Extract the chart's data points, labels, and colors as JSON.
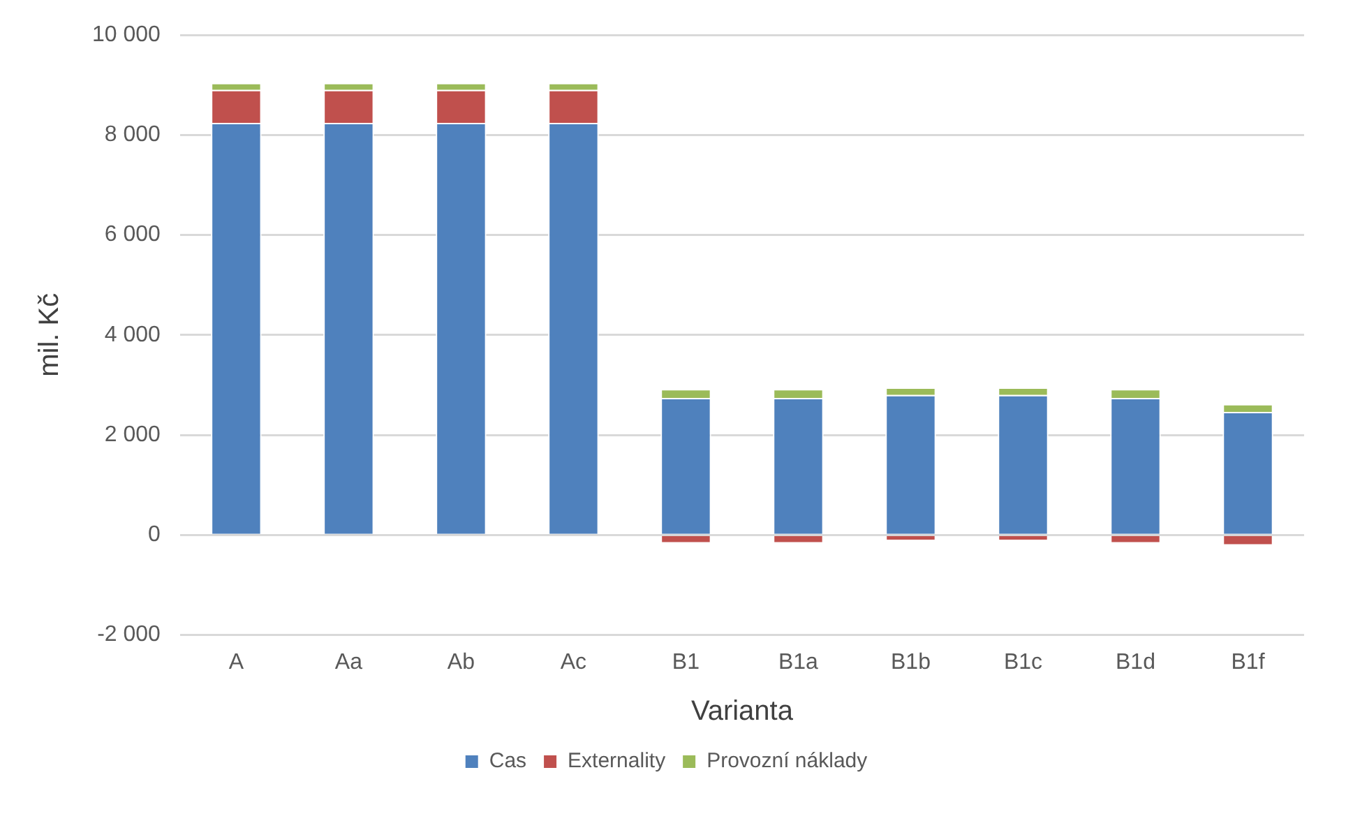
{
  "chart_data": {
    "type": "bar",
    "stacked": true,
    "xlabel": "Varianta",
    "ylabel": "mil. Kč",
    "categories": [
      "A",
      "Aa",
      "Ab",
      "Ac",
      "B1",
      "B1a",
      "B1b",
      "B1c",
      "B1d",
      "B1f"
    ],
    "series": [
      {
        "name": "Cas",
        "color": "#4f81bd",
        "values": [
          8240,
          8240,
          8240,
          8240,
          2740,
          2740,
          2800,
          2800,
          2740,
          2460
        ]
      },
      {
        "name": "Externality",
        "color": "#c0504d",
        "values": [
          660,
          660,
          660,
          660,
          -170,
          -170,
          -120,
          -120,
          -170,
          -210
        ]
      },
      {
        "name": "Provozní náklady",
        "color": "#9bbb59",
        "values": [
          140,
          140,
          140,
          140,
          180,
          180,
          150,
          150,
          180,
          160
        ]
      }
    ],
    "ylim": [
      -2000,
      10000
    ],
    "yticks": [
      {
        "value": -2000,
        "label": "-2 000"
      },
      0,
      {
        "value": 2000,
        "label": "2 000"
      },
      {
        "value": 4000,
        "label": "4 000"
      },
      {
        "value": 6000,
        "label": "6 000"
      },
      {
        "value": 8000,
        "label": "8 000"
      },
      {
        "value": 10000,
        "label": "10 000"
      }
    ],
    "grid": "y",
    "legend": "bottom"
  }
}
